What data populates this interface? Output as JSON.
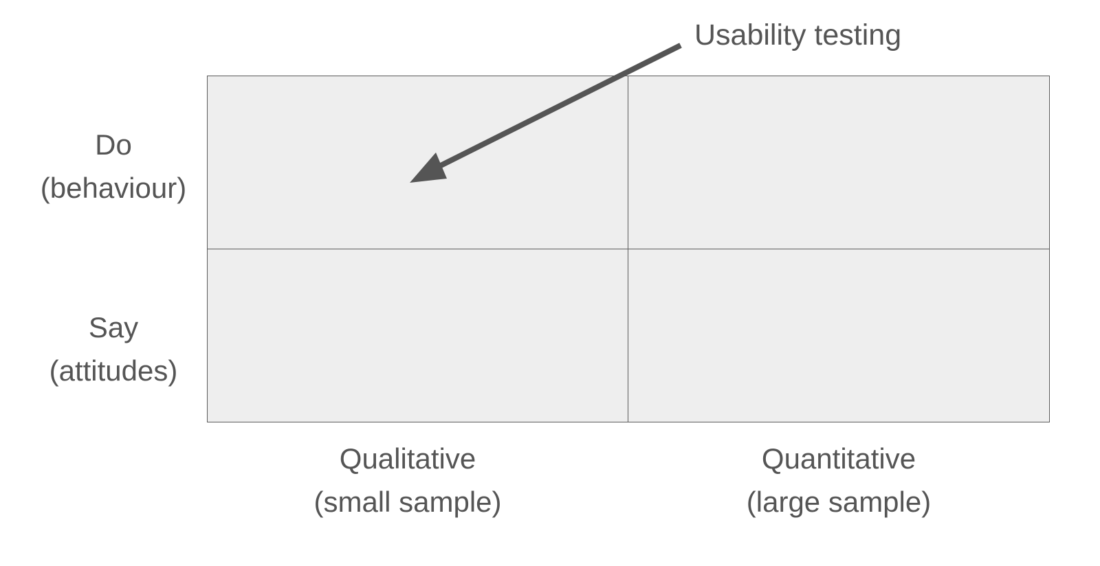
{
  "rows": [
    {
      "title": "Do",
      "subtitle": "(behaviour)"
    },
    {
      "title": "Say",
      "subtitle": "(attitudes)"
    }
  ],
  "columns": [
    {
      "title": "Qualitative",
      "subtitle": "(small sample)"
    },
    {
      "title": "Quantitative",
      "subtitle": "(large sample)"
    }
  ],
  "annotation": {
    "text": "Usability testing",
    "points_to": "Do / Qualitative quadrant"
  },
  "colors": {
    "cell_fill": "#eeeeee",
    "border": "#5a5a5a",
    "text": "#555555",
    "arrow": "#555555"
  }
}
